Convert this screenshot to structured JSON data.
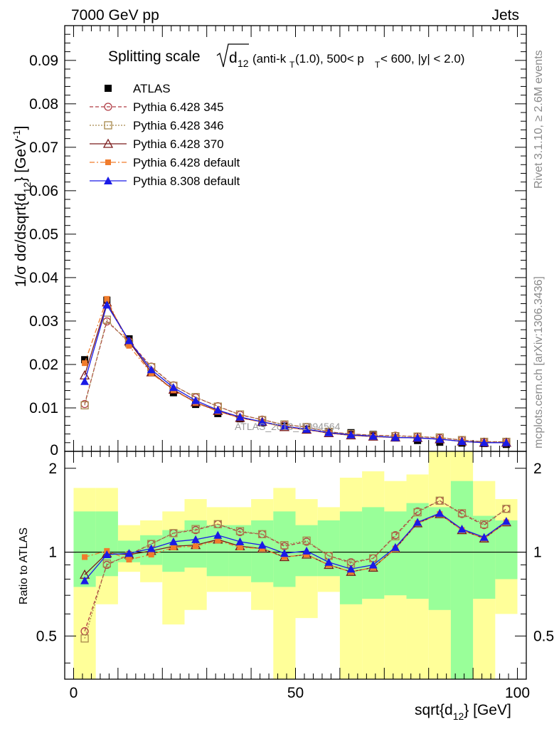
{
  "header": {
    "left": "7000 GeV pp",
    "right": "Jets"
  },
  "side_labels": {
    "top": "Rivet 3.1.10, ≥ 2.6M events",
    "bottom": "mcplots.cern.ch [arXiv:1306.3436]"
  },
  "watermark": "ATLAS_2013_I1094564",
  "title": {
    "main": "Splitting scale",
    "sqrt_arg": "d",
    "sqrt_sub": "12",
    "cond_1": "(anti-k",
    "cond_1_sub": "T",
    "cond_2": "(1.0), 500< p",
    "cond_2_sub": "T",
    "cond_3": " < 600, |y| < 2.0)"
  },
  "axes": {
    "ylabel": "1/σ dσ/dsqrt{d",
    "ylabel_sub": "12",
    "ylabel_end": "} [GeV",
    "ylabel_sup": "-1",
    "ylabel_close": "]",
    "ratio_ylabel": "Ratio to ATLAS",
    "xlabel": "sqrt{d",
    "xlabel_sub": "12",
    "xlabel_end": "} [GeV]"
  },
  "chart_data": {
    "type": "line",
    "x": [
      2.5,
      7.5,
      12.5,
      17.5,
      22.5,
      27.5,
      32.5,
      37.5,
      42.5,
      47.5,
      52.5,
      57.5,
      62.5,
      67.5,
      72.5,
      77.5,
      82.5,
      87.5,
      92.5,
      97.5
    ],
    "xlim": [
      -2,
      102
    ],
    "ylim": [
      0,
      0.098
    ],
    "ratio_ylim": [
      0.35,
      2.3
    ],
    "yticks": [
      "0.01",
      "0.02",
      "0.03",
      "0.04",
      "0.05",
      "0.06",
      "0.07",
      "0.08",
      "0.09"
    ],
    "xticks": [
      "0",
      "50",
      "100"
    ],
    "ratio_ticks": [
      "0.5",
      "1",
      "2"
    ],
    "data_series": {
      "name": "ATLAS",
      "values": [
        0.0211,
        0.0348,
        0.0259,
        0.0182,
        0.0135,
        0.0108,
        0.0087,
        0.0075,
        0.0066,
        0.0058,
        0.0051,
        0.0046,
        0.0043,
        0.0039,
        0.0031,
        0.0025,
        0.0021,
        0.0019,
        0.0018,
        0.0016
      ]
    },
    "bands": {
      "yellow": [
        [
          0.35,
          1.7
        ],
        [
          0.65,
          1.7
        ],
        [
          0.85,
          1.25
        ],
        [
          0.78,
          1.3
        ],
        [
          0.55,
          1.4
        ],
        [
          0.62,
          1.55
        ],
        [
          0.72,
          1.45
        ],
        [
          0.72,
          1.45
        ],
        [
          0.62,
          1.55
        ],
        [
          0.35,
          1.7
        ],
        [
          0.58,
          1.55
        ],
        [
          0.72,
          1.45
        ],
        [
          0.35,
          1.85
        ],
        [
          0.35,
          1.95
        ],
        [
          0.35,
          1.8
        ],
        [
          0.35,
          1.9
        ],
        [
          0.35,
          2.3
        ],
        [
          0.35,
          2.3
        ],
        [
          0.35,
          1.8
        ],
        [
          0.6,
          1.55
        ]
      ],
      "green": [
        [
          0.75,
          1.4
        ],
        [
          0.82,
          1.4
        ],
        [
          0.92,
          1.1
        ],
        [
          0.9,
          1.15
        ],
        [
          0.85,
          1.2
        ],
        [
          0.88,
          1.3
        ],
        [
          0.82,
          1.25
        ],
        [
          0.82,
          1.25
        ],
        [
          0.78,
          1.3
        ],
        [
          0.75,
          1.4
        ],
        [
          0.82,
          1.25
        ],
        [
          0.82,
          1.3
        ],
        [
          0.65,
          1.4
        ],
        [
          0.68,
          1.45
        ],
        [
          0.7,
          1.4
        ],
        [
          0.68,
          1.5
        ],
        [
          0.62,
          1.45
        ],
        [
          0.35,
          1.8
        ],
        [
          0.68,
          1.35
        ],
        [
          0.8,
          1.3
        ]
      ]
    },
    "series": [
      {
        "name": "Pythia 6.428 345",
        "color": "#b03c45",
        "dash": "5,3",
        "marker": "circle-open",
        "values": [
          0.0109,
          0.0299,
          0.0253,
          0.0195,
          0.0152,
          0.0124,
          0.0104,
          0.0084,
          0.0073,
          0.0061,
          0.0056,
          0.0045,
          0.004,
          0.0037,
          0.0036,
          0.0034,
          0.0031,
          0.0026,
          0.0022,
          0.0022
        ],
        "ratio": [
          0.52,
          0.9,
          0.98,
          1.07,
          1.17,
          1.2,
          1.26,
          1.18,
          1.16,
          1.05,
          1.09,
          0.97,
          0.92,
          0.95,
          1.15,
          1.4,
          1.53,
          1.37,
          1.25,
          1.43
        ]
      },
      {
        "name": "Pythia 6.428 346",
        "color": "#a8884c",
        "dash": "2,2",
        "marker": "square-open",
        "values": [
          0.0106,
          0.0303,
          0.0249,
          0.0194,
          0.0151,
          0.0125,
          0.0103,
          0.0085,
          0.0072,
          0.0062,
          0.0056,
          0.0045,
          0.004,
          0.0037,
          0.0035,
          0.0034,
          0.0032,
          0.0026,
          0.0022,
          0.0022
        ],
        "ratio": [
          0.49,
          0.91,
          0.97,
          1.07,
          1.17,
          1.21,
          1.26,
          1.19,
          1.16,
          1.06,
          1.1,
          0.97,
          0.91,
          0.95,
          1.14,
          1.39,
          1.53,
          1.38,
          1.26,
          1.43
        ]
      },
      {
        "name": "Pythia 6.428 370",
        "color": "#7a1a1a",
        "dash": "",
        "marker": "triangle-open",
        "values": [
          0.0175,
          0.0343,
          0.0253,
          0.0182,
          0.0142,
          0.0113,
          0.0093,
          0.0077,
          0.0068,
          0.0056,
          0.005,
          0.0042,
          0.0037,
          0.0034,
          0.0032,
          0.0031,
          0.0028,
          0.0023,
          0.002,
          0.002
        ],
        "ratio": [
          0.83,
          0.99,
          0.98,
          1.01,
          1.05,
          1.06,
          1.11,
          1.05,
          1.03,
          0.96,
          0.98,
          0.9,
          0.85,
          0.88,
          1.03,
          1.27,
          1.37,
          1.2,
          1.12,
          1.28
        ]
      },
      {
        "name": "Pythia 6.428 default",
        "color": "#f07c2c",
        "dash": "7,3,2,3",
        "marker": "square-filled",
        "values": [
          0.0203,
          0.0351,
          0.0243,
          0.018,
          0.0141,
          0.0112,
          0.0092,
          0.0077,
          0.0067,
          0.0056,
          0.005,
          0.0042,
          0.0037,
          0.0034,
          0.0032,
          0.0031,
          0.0028,
          0.0023,
          0.002,
          0.002
        ],
        "ratio": [
          0.96,
          1.01,
          0.94,
          0.98,
          1.04,
          1.05,
          1.1,
          1.04,
          1.03,
          0.96,
          0.98,
          0.9,
          0.85,
          0.88,
          1.03,
          1.27,
          1.37,
          1.2,
          1.12,
          1.28
        ]
      },
      {
        "name": "Pythia 8.308 default",
        "color": "#1a1ae6",
        "dash": "",
        "marker": "triangle-filled",
        "values": [
          0.0161,
          0.0337,
          0.0255,
          0.0188,
          0.0147,
          0.0117,
          0.0095,
          0.0079,
          0.0068,
          0.0058,
          0.0051,
          0.0043,
          0.0038,
          0.0035,
          0.0032,
          0.0031,
          0.0028,
          0.0023,
          0.002,
          0.002
        ],
        "ratio": [
          0.79,
          0.98,
          0.99,
          1.03,
          1.09,
          1.11,
          1.15,
          1.09,
          1.06,
          0.99,
          1.01,
          0.92,
          0.87,
          0.9,
          1.04,
          1.28,
          1.38,
          1.21,
          1.13,
          1.29
        ]
      }
    ]
  }
}
